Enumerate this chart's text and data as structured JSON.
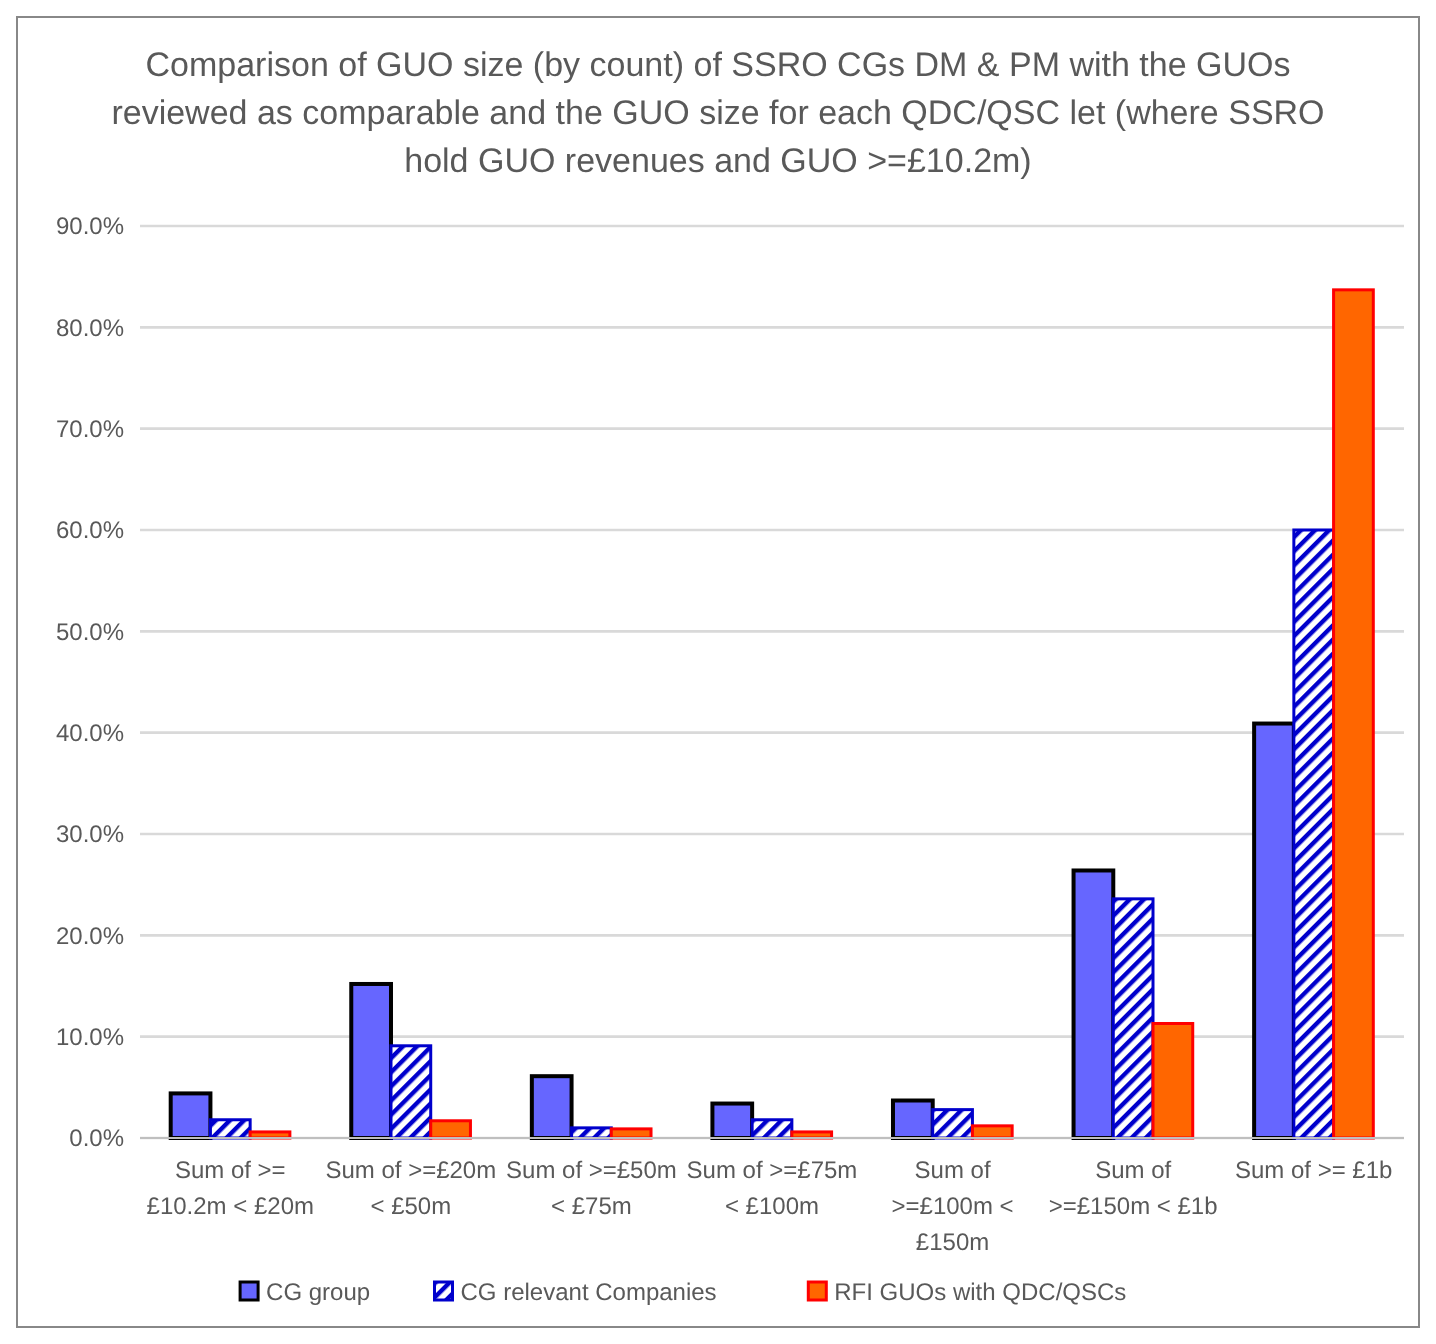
{
  "chart_data": {
    "type": "bar",
    "title": "Comparison of GUO size (by count) of SSRO CGs DM & PM with the GUOs reviewed as comparable and the GUO size for each QDC/QSC let (where SSRO hold GUO  revenues and GUO >=£10.2m)",
    "categories": [
      "Sum of >= £10.2m < £20m",
      "Sum of >=£20m < £50m",
      "Sum of >=£50m < £75m",
      "Sum of >=£75m < £100m",
      "Sum of >=£100m < £150m",
      "Sum of >=£150m < £1b",
      "Sum of >= £1b"
    ],
    "series": [
      {
        "name": "CG group",
        "color": "#6666ff",
        "values": [
          4.4,
          15.2,
          6.1,
          3.4,
          3.7,
          26.4,
          40.9
        ]
      },
      {
        "name": "CG relevant Companies",
        "color": "#0000cc",
        "values": [
          1.8,
          9.1,
          1.0,
          1.8,
          2.8,
          23.6,
          60.0
        ]
      },
      {
        "name": "RFI GUOs with QDC/QSCs",
        "color": "#ff6600",
        "values": [
          0.6,
          1.7,
          0.9,
          0.6,
          1.2,
          11.3,
          83.7
        ]
      }
    ],
    "ylim": [
      0,
      90
    ],
    "yticks": [
      {
        "value": 0,
        "label": "0.0%"
      },
      {
        "value": 10,
        "label": "10.0%"
      },
      {
        "value": 20,
        "label": "20.0%"
      },
      {
        "value": 30,
        "label": "30.0%"
      },
      {
        "value": 40,
        "label": "40.0%"
      },
      {
        "value": 50,
        "label": "50.0%"
      },
      {
        "value": 60,
        "label": "60.0%"
      },
      {
        "value": 70,
        "label": "70.0%"
      },
      {
        "value": 80,
        "label": "80.0%"
      },
      {
        "value": 90,
        "label": "90.0%"
      }
    ],
    "grid": "y",
    "legend": "bottom"
  }
}
